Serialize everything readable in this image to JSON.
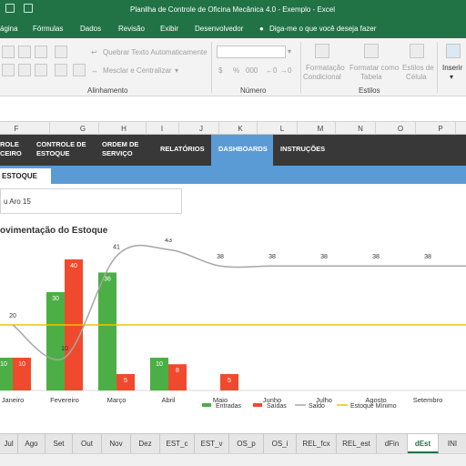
{
  "window": {
    "title": "Planilha de Controle de Oficina Mecânica 4.0 - Exemplo  -  Excel"
  },
  "menu": [
    "ágina",
    "Fórmulas",
    "Dados",
    "Revisão",
    "Exibir",
    "Desenvolvedor",
    "Diga-me o que você deseja fazer"
  ],
  "ribbon": {
    "wrap_text": "Quebrar Texto Automaticamente",
    "merge_center": "Mesclar e Centralizar",
    "group_alignment": "Alinhamento",
    "group_number": "Número",
    "group_styles": "Estilos",
    "cond_format_1": "Formatação",
    "cond_format_2": "Condicional",
    "format_table_1": "Formatar como",
    "format_table_2": "Tabela",
    "cell_styles_1": "Estilos de",
    "cell_styles_2": "Célula",
    "insert": "Inserir",
    "percent": "%",
    "thousands": "000"
  },
  "columns": [
    "F",
    "G",
    "H",
    "I",
    "J",
    "K",
    "L",
    "M",
    "N",
    "O",
    "P"
  ],
  "nav": {
    "n0a": "ROLE",
    "n0b": "CEIRO",
    "n1a": "CONTROLE DE",
    "n1b": "ESTOQUE",
    "n2a": "ORDEM DE",
    "n2b": "SERVIÇO",
    "n3": "RELATÓRIOS",
    "n4": "DASHBOARDS",
    "n5": "INSTRUÇÕES"
  },
  "subtab": "ESTOQUE",
  "info": "u Aro 15",
  "chart_title": "ovimentação do Estoque",
  "chart_data": {
    "type": "bar",
    "categories": [
      "Janeiro",
      "Fevereiro",
      "Março",
      "Abril",
      "Maio",
      "Junho",
      "Julho",
      "Agosto",
      "Setembro"
    ],
    "series": [
      {
        "name": "Entradas",
        "type": "bar",
        "color": "#4caf45",
        "values": [
          10,
          30,
          36,
          10,
          null,
          null,
          null,
          null,
          null
        ]
      },
      {
        "name": "Saídas",
        "type": "bar",
        "color": "#f04a2e",
        "values": [
          10,
          40,
          5,
          8,
          5,
          null,
          null,
          null,
          null
        ]
      },
      {
        "name": "Saldo",
        "type": "line",
        "color": "#a6a6a6",
        "values": [
          20,
          10,
          41,
          43,
          38,
          38,
          38,
          38,
          38
        ]
      },
      {
        "name": "Estoque Mínimo",
        "type": "line",
        "color": "#f5c200",
        "values": [
          20,
          20,
          20,
          20,
          20,
          20,
          20,
          20,
          20
        ]
      }
    ],
    "legend_position": "bottom"
  },
  "sheets": [
    "Jul",
    "Ago",
    "Set",
    "Out",
    "Nov",
    "Dez",
    "EST_c",
    "EST_v",
    "OS_p",
    "OS_i",
    "REL_fcx",
    "REL_est",
    "dFin",
    "dEst",
    "INI"
  ]
}
